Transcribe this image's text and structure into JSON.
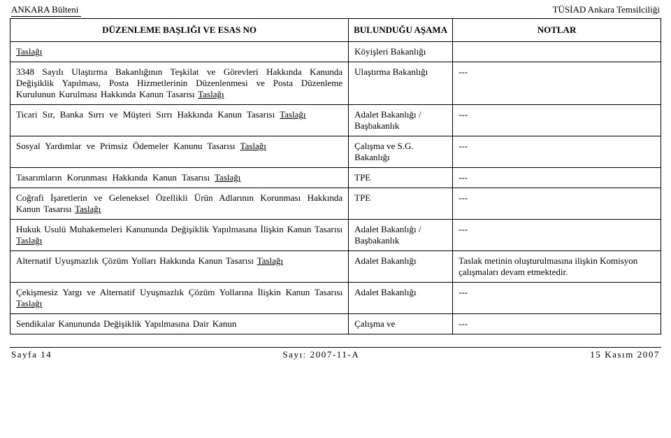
{
  "header": {
    "left": "ANKARA Bülteni",
    "right": "TÜSİAD Ankara Temsilciliği"
  },
  "columns": {
    "c1": "DÜZENLEME BAŞLIĞI VE ESAS NO",
    "c2": "BULUNDUĞU AŞAMA",
    "c3": "NOTLAR"
  },
  "rows": [
    {
      "col1_html": "<u>Taslağı</u>",
      "col1_class": "plain",
      "col2": "Köyişleri Bakanlığı",
      "col3": ""
    },
    {
      "col1_html": "3348 Sayılı Ulaştırma Bakanlığının Teşkilat ve Görevleri Hakkında Kanunda Değişiklik Yapılması, Posta Hizmetlerinin Düzenlenmesi ve Posta Düzenleme Kurulunun Kurulması Hakkında Kanun Tasarısı <u>Taslağı</u>",
      "col2": "Ulaştırma Bakanlığı",
      "col3": "---"
    },
    {
      "col1_html": "Ticari Sır, Banka Sırrı ve Müşteri Sırrı Hakkında Kanun Tasarısı <u>Taslağı</u>",
      "col1_class": "plain",
      "col2": "Adalet Bakanlığı / Başbakanlık",
      "col3": "---"
    },
    {
      "col1_html": "Sosyal Yardımlar ve Primsiz Ödemeler Kanunu Tasarısı <u>Taslağı</u>",
      "col1_class": "plain",
      "col2": "Çalışma ve S.G. Bakanlığı",
      "col3": "---"
    },
    {
      "col1_html": "Tasarımların Korunması Hakkında Kanun Tasarısı <u>Taslağı</u>",
      "col1_class": "plain",
      "col2": "TPE",
      "col3": "---"
    },
    {
      "col1_html": "Coğrafi İşaretlerin ve Geleneksel Özellikli Ürün Adlarının Korunması Hakkında Kanun Tasarısı <u>Taslağı</u>",
      "col2": "TPE",
      "col3": "---"
    },
    {
      "col1_html": "Hukuk Usulü Muhakemeleri Kanununda Değişiklik Yapılmasına İlişkin Kanun Tasarısı <u>Taslağı</u>",
      "col2": "Adalet Bakanlığı / Başbakanlık",
      "col3": "---"
    },
    {
      "col1_html": "Alternatif Uyuşmazlık Çözüm Yolları Hakkında Kanun Tasarısı <u>Taslağı</u>",
      "col2": "Adalet Bakanlığı",
      "col3": "Taslak metinin oluşturulmasına ilişkin Komisyon çalışmaları devam etmektedir."
    },
    {
      "col1_html": "Çekişmesiz Yargı ve Alternatif Uyuşmazlık Çözüm Yollarına İlişkin Kanun Tasarısı <u>Taslağı</u>",
      "col2": "Adalet Bakanlığı",
      "col3": "---"
    },
    {
      "col1_html": "Sendikalar Kanununda Değişiklik Yapılmasına Dair Kanun",
      "col2": "Çalışma ve",
      "col3": "---"
    }
  ],
  "footer": {
    "left": "Sayfa 14",
    "center": "Sayı: 2007-11-A",
    "right": "15 Kasım 2007"
  },
  "style": {
    "text_color": "#000000",
    "bg_color": "#ffffff",
    "border_color": "#000000",
    "base_fontsize": 13
  }
}
